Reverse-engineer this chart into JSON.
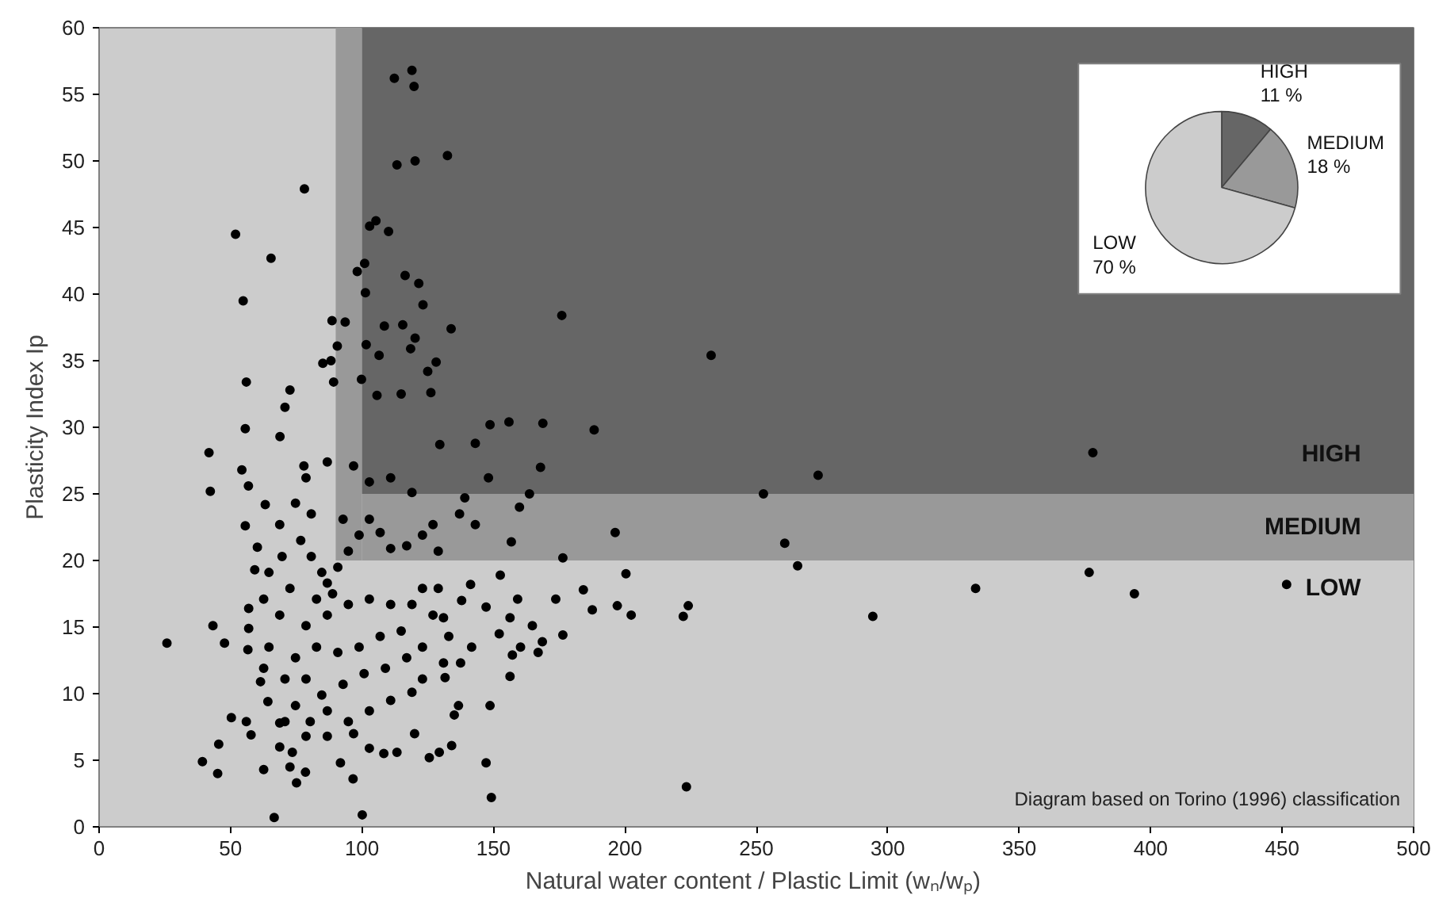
{
  "chart_data": [
    {
      "type": "scatter",
      "xlabel": "Natural water content / Plastic Limit  (wₙ/wₚ)",
      "ylabel": "Plasticity Index Ip",
      "xlim": [
        0,
        500
      ],
      "xticks": [
        0,
        50,
        100,
        150,
        200,
        250,
        300,
        350,
        400,
        450,
        500
      ],
      "ylim": [
        0,
        60
      ],
      "yticks": [
        0,
        5,
        10,
        15,
        20,
        25,
        30,
        35,
        40,
        45,
        50,
        55,
        60
      ],
      "grid": false,
      "marker": "circle",
      "bands": [
        {
          "axis": "y",
          "from": 0,
          "to": 20,
          "label": "LOW",
          "color": "#cccccc"
        },
        {
          "axis": "x",
          "from": 90,
          "to": 100,
          "color": "#999999"
        },
        {
          "axis": "y",
          "from": 20,
          "to": 25,
          "label": "MEDIUM",
          "color": "#999999"
        },
        {
          "axis": "y",
          "from": 25,
          "to": 60,
          "label": "HIGH",
          "color": "#666666"
        }
      ],
      "annotations": [
        "Diagram based on Torino (1996) classification"
      ],
      "series": [
        {
          "color": "#000000",
          "x": [
            112.3,
            119,
            119.8,
            113.3,
            120.2,
            132.5,
            78.1,
            51.9,
            65.4,
            54.8,
            102.9,
            105.3,
            110.1,
            101,
            98.2,
            101.3,
            116.4,
            121.6,
            123.2,
            88.6,
            93.6,
            108.5,
            115.5,
            133.9,
            90.6,
            101.6,
            120.2,
            118.5,
            85.1,
            88.2,
            106.5,
            128.2,
            125,
            56,
            89.2,
            99.8,
            126.2,
            72.6,
            114.9,
            105.7,
            55.6,
            68.8,
            70.7,
            41.8,
            54.3,
            148.7,
            143.1,
            129.6,
            77.9,
            25.8,
            39.3,
            45.1,
            66.6,
            100.1,
            96.6,
            149.2,
            148.7,
            147.2,
            42.3,
            56.8,
            63.2,
            43.3,
            47.7,
            50.3,
            56,
            57.8,
            45.5,
            62.6,
            72.6,
            75.1,
            78.5,
            55.6,
            60.2,
            59.2,
            56.9,
            56.9,
            56.6,
            61.4,
            64.2,
            68.7,
            68.7,
            73.5,
            80.3,
            86.8,
            91.8,
            96.8,
            102.8,
            108.3,
            113.3,
            120,
            125.6,
            129.4,
            134.1,
            135.1,
            136.7,
            131.6,
            131,
            137.5,
            141.7,
            131,
            137.9,
            141.3,
            147.2,
            152.2,
            152.6,
            82.7,
            86.8,
            90.8,
            94.8,
            98.9,
            92.8,
            102.8,
            106.9,
            110.9,
            117,
            123,
            129,
            127,
            137.1,
            143.1,
            139.1,
            148.1,
            119,
            110.9,
            102.8,
            96.8,
            86.8,
            78.7,
            74.7,
            80.7,
            68.7,
            76.7,
            69.6,
            64.6,
            72.6,
            62.6,
            68.7,
            78.7,
            86.8,
            94.8,
            102.8,
            110.9,
            119,
            123,
            127,
            114.9,
            106.9,
            98.9,
            90.8,
            82.7,
            74.7,
            64.6,
            62.6,
            70.7,
            78.7,
            84.7,
            92.8,
            100.8,
            108.9,
            117,
            123,
            119,
            110.9,
            102.8,
            94.8,
            86.8,
            74.7,
            78.7,
            70.7,
            123,
            129,
            133,
            88.8,
            84.7,
            80.7,
            176,
            232.8,
            155.9,
            168.8,
            188.3,
            167.9,
            163.7,
            159.9,
            156.8,
            176.4,
            196.3,
            200.4,
            184.2,
            173.7,
            159.2,
            156.3,
            187.6,
            197.1,
            202.4,
            222.2,
            224.1,
            164.8,
            176.4,
            168.6,
            160.3,
            167,
            157.2,
            156.3,
            223.4,
            252.7,
            273.5,
            260.8,
            265.7,
            294.3,
            333.4,
            376.6,
            378,
            393.8,
            451.7
          ],
          "values": [
            56.2,
            56.8,
            55.6,
            49.7,
            50.0,
            50.4,
            47.9,
            44.5,
            42.7,
            39.5,
            45.1,
            45.5,
            44.7,
            42.3,
            41.7,
            40.1,
            41.4,
            40.8,
            39.2,
            38.0,
            37.9,
            37.6,
            37.7,
            37.4,
            36.1,
            36.2,
            36.7,
            35.9,
            34.8,
            35.0,
            35.4,
            34.9,
            34.2,
            33.4,
            33.4,
            33.6,
            32.6,
            32.8,
            32.5,
            32.4,
            29.9,
            29.3,
            31.5,
            28.1,
            26.8,
            30.2,
            28.8,
            28.7,
            27.1,
            13.8,
            4.9,
            4.0,
            0.7,
            0.9,
            3.6,
            2.2,
            9.1,
            4.8,
            25.2,
            25.6,
            24.2,
            15.1,
            13.8,
            8.2,
            7.9,
            6.9,
            6.2,
            4.3,
            4.5,
            3.3,
            4.1,
            22.6,
            21.0,
            19.3,
            16.4,
            14.9,
            13.3,
            10.9,
            9.4,
            7.8,
            6.0,
            5.6,
            7.9,
            6.8,
            4.8,
            7.0,
            5.9,
            5.5,
            5.6,
            7.0,
            5.2,
            5.6,
            6.1,
            8.4,
            9.1,
            11.2,
            12.3,
            12.3,
            13.5,
            15.7,
            17.0,
            18.2,
            16.5,
            14.5,
            18.9,
            17.1,
            18.3,
            19.5,
            20.7,
            21.9,
            23.1,
            23.1,
            22.1,
            20.9,
            21.1,
            21.9,
            20.7,
            22.7,
            23.5,
            22.7,
            24.7,
            26.2,
            25.1,
            26.2,
            25.9,
            27.1,
            27.4,
            26.2,
            24.3,
            23.5,
            22.7,
            21.5,
            20.3,
            19.1,
            17.9,
            17.1,
            15.9,
            15.1,
            15.9,
            16.7,
            17.1,
            16.7,
            16.7,
            17.9,
            15.9,
            14.7,
            14.3,
            13.5,
            13.1,
            13.5,
            12.7,
            13.5,
            11.9,
            11.1,
            11.1,
            9.9,
            10.7,
            11.5,
            11.9,
            12.7,
            11.1,
            10.1,
            9.5,
            8.7,
            7.9,
            8.7,
            9.1,
            6.8,
            7.9,
            13.5,
            17.9,
            14.3,
            17.5,
            19.1,
            20.3,
            38.4,
            35.4,
            30.4,
            30.3,
            29.8,
            27.0,
            25.0,
            24.0,
            21.4,
            20.2,
            22.1,
            19.0,
            17.8,
            17.1,
            17.1,
            15.7,
            16.3,
            16.6,
            15.9,
            15.8,
            16.6,
            15.1,
            14.4,
            13.9,
            13.5,
            13.1,
            12.9,
            11.3,
            3.0,
            25.0,
            26.4,
            21.3,
            19.6,
            15.8,
            17.9,
            19.1,
            28.1,
            17.5,
            18.2
          ]
        }
      ]
    },
    {
      "type": "pie",
      "categories": [
        "HIGH",
        "MEDIUM",
        "LOW"
      ],
      "values": [
        11,
        18,
        70
      ],
      "value_labels": [
        "11 %",
        "18 %",
        "70 %"
      ],
      "colors": [
        "#666666",
        "#999999",
        "#cccccc"
      ]
    }
  ]
}
